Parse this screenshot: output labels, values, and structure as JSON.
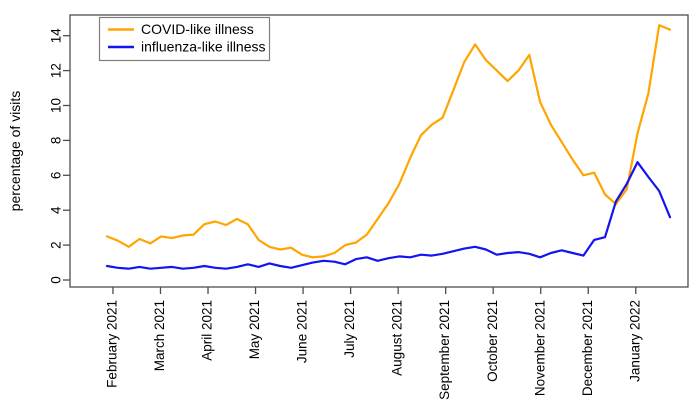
{
  "chart_data": {
    "type": "line",
    "title": "",
    "xlabel": "",
    "ylabel": "percentage of visits",
    "ylim": [
      0,
      15.2
    ],
    "yticks": [
      0,
      2,
      4,
      6,
      8,
      10,
      12,
      14
    ],
    "grid": false,
    "legend_position": "top-left",
    "x_unit": "weekly data points, late January 2021 through mid January 2022",
    "month_ticks": [
      {
        "label": "February 2021",
        "week_pos": 0.55
      },
      {
        "label": "March 2021",
        "week_pos": 4.94
      },
      {
        "label": "April 2021",
        "week_pos": 9.33
      },
      {
        "label": "May 2021",
        "week_pos": 13.72
      },
      {
        "label": "June 2021",
        "week_pos": 18.11
      },
      {
        "label": "July 2021",
        "week_pos": 22.5
      },
      {
        "label": "August 2021",
        "week_pos": 26.89
      },
      {
        "label": "September 2021",
        "week_pos": 31.28
      },
      {
        "label": "October 2021",
        "week_pos": 35.67
      },
      {
        "label": "November 2021",
        "week_pos": 40.06
      },
      {
        "label": "December 2021",
        "week_pos": 44.45
      },
      {
        "label": "January 2022",
        "week_pos": 48.84
      }
    ],
    "series": [
      {
        "name": "COVID-like illness",
        "color": "#FFA500",
        "values": [
          2.5,
          2.25,
          1.9,
          2.35,
          2.1,
          2.5,
          2.4,
          2.55,
          2.6,
          3.2,
          3.35,
          3.15,
          3.5,
          3.2,
          2.3,
          1.9,
          1.75,
          1.85,
          1.45,
          1.3,
          1.35,
          1.55,
          2.0,
          2.15,
          2.6,
          3.5,
          4.4,
          5.5,
          7.0,
          8.3,
          8.9,
          9.3,
          10.9,
          12.5,
          13.5,
          12.6,
          12.0,
          11.4,
          12.0,
          12.9,
          10.2,
          8.9,
          7.9,
          6.9,
          6.0,
          6.15,
          4.9,
          4.35,
          5.2,
          8.4,
          10.7,
          14.6,
          14.35
        ]
      },
      {
        "name": "influenza-like illness",
        "color": "#1414F0",
        "values": [
          0.8,
          0.7,
          0.65,
          0.75,
          0.65,
          0.7,
          0.75,
          0.65,
          0.7,
          0.8,
          0.7,
          0.65,
          0.75,
          0.9,
          0.75,
          0.95,
          0.8,
          0.7,
          0.85,
          1.0,
          1.1,
          1.05,
          0.9,
          1.2,
          1.3,
          1.1,
          1.25,
          1.35,
          1.3,
          1.45,
          1.4,
          1.5,
          1.65,
          1.8,
          1.9,
          1.75,
          1.45,
          1.55,
          1.6,
          1.5,
          1.3,
          1.55,
          1.7,
          1.55,
          1.4,
          2.3,
          2.45,
          4.5,
          5.5,
          6.75,
          5.9,
          5.1,
          3.6
        ]
      }
    ],
    "axis_color": "#4d4d4d",
    "legend_border_color": "#7f7f7f"
  }
}
